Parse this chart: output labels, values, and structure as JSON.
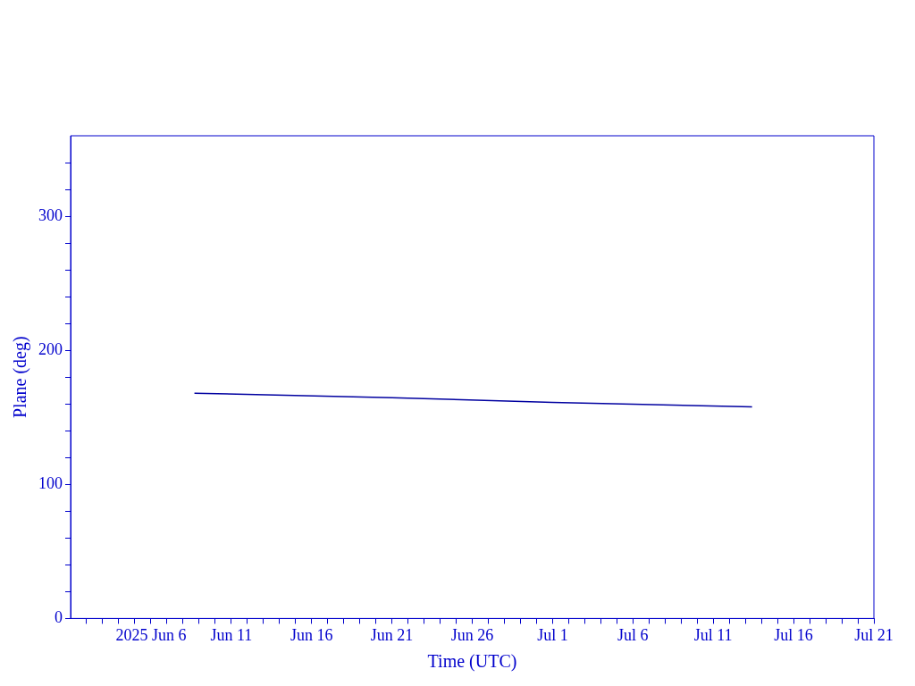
{
  "chart_data": {
    "type": "line",
    "xlabel": "Time (UTC)",
    "ylabel": "Plane (deg)",
    "x": [
      "2025-06-08T17:00",
      "2025-06-21T00:00",
      "2025-07-01T00:00",
      "2025-07-13T10:00"
    ],
    "series": [
      {
        "color": "#0000a0",
        "values": [
          168.0,
          164.6,
          161.2,
          157.8
        ]
      }
    ],
    "xlim": [
      "2025-06-01",
      "2025-07-21"
    ],
    "xticks": [
      {
        "value": "2025-06-02",
        "label": null
      },
      {
        "value": "2025-06-03",
        "label": null
      },
      {
        "value": "2025-06-04",
        "label": null
      },
      {
        "value": "2025-06-05",
        "label": null
      },
      {
        "value": "2025-06-06",
        "label": "2025 Jun 6"
      },
      {
        "value": "2025-06-07",
        "label": null
      },
      {
        "value": "2025-06-08",
        "label": null
      },
      {
        "value": "2025-06-09",
        "label": null
      },
      {
        "value": "2025-06-10",
        "label": null
      },
      {
        "value": "2025-06-11",
        "label": "Jun 11"
      },
      {
        "value": "2025-06-12",
        "label": null
      },
      {
        "value": "2025-06-13",
        "label": null
      },
      {
        "value": "2025-06-14",
        "label": null
      },
      {
        "value": "2025-06-15",
        "label": null
      },
      {
        "value": "2025-06-16",
        "label": "Jun 16"
      },
      {
        "value": "2025-06-17",
        "label": null
      },
      {
        "value": "2025-06-18",
        "label": null
      },
      {
        "value": "2025-06-19",
        "label": null
      },
      {
        "value": "2025-06-20",
        "label": null
      },
      {
        "value": "2025-06-21",
        "label": "Jun 21"
      },
      {
        "value": "2025-06-22",
        "label": null
      },
      {
        "value": "2025-06-23",
        "label": null
      },
      {
        "value": "2025-06-24",
        "label": null
      },
      {
        "value": "2025-06-25",
        "label": null
      },
      {
        "value": "2025-06-26",
        "label": "Jun 26"
      },
      {
        "value": "2025-06-27",
        "label": null
      },
      {
        "value": "2025-06-28",
        "label": null
      },
      {
        "value": "2025-06-29",
        "label": null
      },
      {
        "value": "2025-06-30",
        "label": null
      },
      {
        "value": "2025-07-01",
        "label": "Jul 1"
      },
      {
        "value": "2025-07-02",
        "label": null
      },
      {
        "value": "2025-07-03",
        "label": null
      },
      {
        "value": "2025-07-04",
        "label": null
      },
      {
        "value": "2025-07-05",
        "label": null
      },
      {
        "value": "2025-07-06",
        "label": "Jul 6"
      },
      {
        "value": "2025-07-07",
        "label": null
      },
      {
        "value": "2025-07-08",
        "label": null
      },
      {
        "value": "2025-07-09",
        "label": null
      },
      {
        "value": "2025-07-10",
        "label": null
      },
      {
        "value": "2025-07-11",
        "label": "Jul 11"
      },
      {
        "value": "2025-07-12",
        "label": null
      },
      {
        "value": "2025-07-13",
        "label": null
      },
      {
        "value": "2025-07-14",
        "label": null
      },
      {
        "value": "2025-07-15",
        "label": null
      },
      {
        "value": "2025-07-16",
        "label": "Jul 16"
      },
      {
        "value": "2025-07-17",
        "label": null
      },
      {
        "value": "2025-07-18",
        "label": null
      },
      {
        "value": "2025-07-19",
        "label": null
      },
      {
        "value": "2025-07-20",
        "label": null
      },
      {
        "value": "2025-07-21",
        "label": "Jul 21"
      }
    ],
    "ylim": [
      0,
      360
    ],
    "yticks": [
      0,
      {
        "value": 20,
        "label": null
      },
      {
        "value": 40,
        "label": null
      },
      {
        "value": 60,
        "label": null
      },
      {
        "value": 80,
        "label": null
      },
      100,
      {
        "value": 120,
        "label": null
      },
      {
        "value": 140,
        "label": null
      },
      {
        "value": 160,
        "label": null
      },
      {
        "value": 180,
        "label": null
      },
      200,
      {
        "value": 220,
        "label": null
      },
      {
        "value": 240,
        "label": null
      },
      {
        "value": 260,
        "label": null
      },
      {
        "value": 280,
        "label": null
      },
      300,
      {
        "value": 320,
        "label": null
      },
      {
        "value": 340,
        "label": null
      }
    ],
    "grid": false,
    "legend": false,
    "marker": "none",
    "line_style": "solid"
  }
}
